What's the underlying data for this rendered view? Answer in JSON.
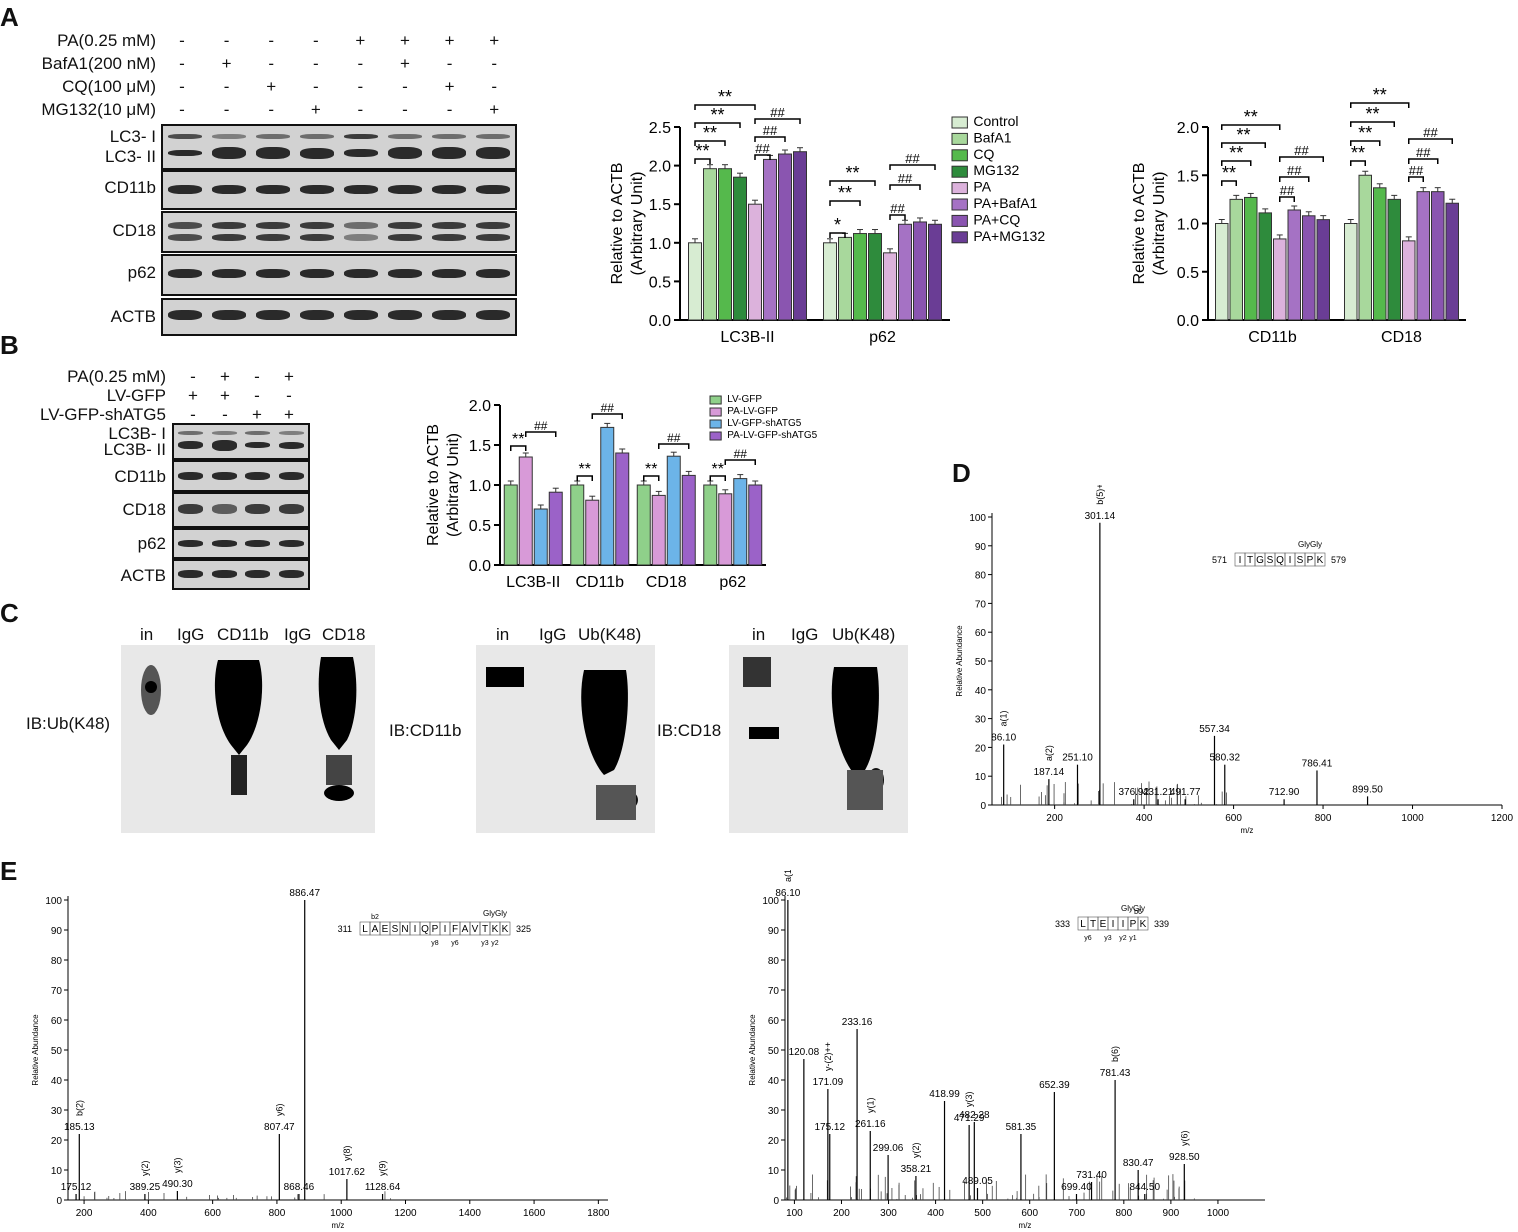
{
  "panels": {
    "A": "A",
    "B": "B",
    "C": "C",
    "D": "D",
    "E": "E"
  },
  "panelA": {
    "conditions": [
      {
        "label": "PA(0.25 mM)",
        "signs": [
          "-",
          "-",
          "-",
          "-",
          "+",
          "+",
          "+",
          "+"
        ]
      },
      {
        "label": "BafA1(200 nM)",
        "signs": [
          "-",
          "+",
          "-",
          "-",
          "-",
          "+",
          "-",
          "-"
        ]
      },
      {
        "label": "CQ(100 μM)",
        "signs": [
          "-",
          "-",
          "+",
          "-",
          "-",
          "-",
          "+",
          "-"
        ]
      },
      {
        "label": "MG132(10 μM)",
        "signs": [
          "-",
          "-",
          "-",
          "+",
          "-",
          "-",
          "-",
          "+"
        ]
      }
    ],
    "blots": [
      "LC3- I",
      "LC3- II",
      "CD11b",
      "CD18",
      "p62",
      "ACTB"
    ]
  },
  "panelB": {
    "conditions": [
      {
        "label": "PA(0.25 mM)",
        "signs": [
          "-",
          "+",
          "-",
          "+"
        ]
      },
      {
        "label": "LV-GFP",
        "signs": [
          "+",
          "+",
          "-",
          "-"
        ]
      },
      {
        "label": "LV-GFP-shATG5",
        "signs": [
          "-",
          "-",
          "+",
          "+"
        ]
      }
    ],
    "blots": [
      "LC3B- I",
      "LC3B- II",
      "CD11b",
      "CD18",
      "p62",
      "ACTB"
    ]
  },
  "panelC": {
    "blot1": {
      "lanes": [
        "in",
        "IgG",
        "CD11b",
        "IgG",
        "CD18"
      ],
      "ib": "IB:Ub(K48)"
    },
    "blot2": {
      "lanes": [
        "in",
        "IgG",
        "Ub(K48)"
      ],
      "ib": "IB:CD11b"
    },
    "blot3": {
      "lanes": [
        "in",
        "IgG",
        "Ub(K48)"
      ],
      "ib": "IB:CD18"
    }
  },
  "colors": {
    "Control": "#d7ecd2",
    "BafA1": "#a8d89c",
    "CQ": "#55b94c",
    "MG132": "#2e8b3c",
    "PA": "#dcb2dc",
    "PA+BafA1": "#a572c4",
    "PA+CQ": "#8a55b0",
    "PA+MG132": "#6a3d95",
    "LV-GFP": "#8fd08a",
    "PA-LV-GFP": "#d89ad8",
    "LV-GFP-shATG5": "#6cb4e8",
    "PA-LV-GFP-shATG5": "#9b62c8"
  },
  "chart_data": [
    {
      "type": "bar",
      "ylabel": "Relative to ACTB",
      "ylabel2": "(Arbitrary Unit)",
      "ylim": [
        0,
        2.5
      ],
      "yticks": [
        "0.0",
        "0.5",
        "1.0",
        "1.5",
        "2.0",
        "2.5"
      ],
      "categories": [
        "LC3B-II",
        "p62"
      ],
      "series": [
        {
          "name": "Control",
          "values": [
            1.0,
            1.0
          ]
        },
        {
          "name": "BafA1",
          "values": [
            1.96,
            1.07
          ]
        },
        {
          "name": "CQ",
          "values": [
            1.96,
            1.12
          ]
        },
        {
          "name": "MG132",
          "values": [
            1.85,
            1.12
          ]
        },
        {
          "name": "PA",
          "values": [
            1.5,
            0.87
          ]
        },
        {
          "name": "PA+BafA1",
          "values": [
            2.08,
            1.24
          ]
        },
        {
          "name": "PA+CQ",
          "values": [
            2.15,
            1.27
          ]
        },
        {
          "name": "PA+MG132",
          "values": [
            2.18,
            1.24
          ]
        }
      ],
      "legend": "right",
      "annotations": [
        "**",
        "**",
        "**",
        "##",
        "##",
        "**",
        "**",
        "*",
        "**",
        "##",
        "##",
        "##"
      ]
    },
    {
      "type": "bar",
      "ylabel": "Relative to ACTB",
      "ylabel2": "(Arbitrary Unit)",
      "ylim": [
        0,
        2.0
      ],
      "yticks": [
        "0.0",
        "0.5",
        "1.0",
        "1.5",
        "2.0"
      ],
      "categories": [
        "CD11b",
        "CD18"
      ],
      "series": [
        {
          "name": "Control",
          "values": [
            1.0,
            1.0
          ]
        },
        {
          "name": "BafA1",
          "values": [
            1.25,
            1.5
          ]
        },
        {
          "name": "CQ",
          "values": [
            1.27,
            1.37
          ]
        },
        {
          "name": "MG132",
          "values": [
            1.11,
            1.25
          ]
        },
        {
          "name": "PA",
          "values": [
            0.84,
            0.82
          ]
        },
        {
          "name": "PA+BafA1",
          "values": [
            1.14,
            1.33
          ]
        },
        {
          "name": "PA+CQ",
          "values": [
            1.08,
            1.33
          ]
        },
        {
          "name": "PA+MG132",
          "values": [
            1.04,
            1.21
          ]
        }
      ],
      "annotations": [
        "**",
        "**",
        "**",
        "**",
        "##",
        "##",
        "##",
        "**",
        "**",
        "**",
        "**",
        "##",
        "##",
        "##"
      ]
    },
    {
      "type": "bar",
      "ylabel": "Relative to ACTB",
      "ylabel2": "(Arbitrary Unit)",
      "ylim": [
        0,
        2.0
      ],
      "yticks": [
        "0.0",
        "0.5",
        "1.0",
        "1.5",
        "2.0"
      ],
      "categories": [
        "LC3B-II",
        "CD11b",
        "CD18",
        "p62"
      ],
      "series": [
        {
          "name": "LV-GFP",
          "values": [
            1.0,
            1.0,
            1.0,
            1.0
          ]
        },
        {
          "name": "PA-LV-GFP",
          "values": [
            1.35,
            0.81,
            0.87,
            0.89
          ]
        },
        {
          "name": "LV-GFP-shATG5",
          "values": [
            0.7,
            1.72,
            1.36,
            1.08
          ]
        },
        {
          "name": "PA-LV-GFP-shATG5",
          "values": [
            0.91,
            1.4,
            1.12,
            1.0
          ]
        }
      ],
      "legend": "top-right",
      "annotations": [
        "**",
        "##",
        "**",
        "##",
        "**",
        "##",
        "**",
        "##"
      ]
    },
    {
      "type": "bar",
      "subtype": "mass-spectrum",
      "ylabel": "Relative Abundance",
      "xlabel": "m/z",
      "xlim": [
        60,
        1200
      ],
      "ylim": [
        0,
        100
      ],
      "xticks": [
        "200",
        "400",
        "600",
        "800",
        "1000",
        "1200"
      ],
      "yticks": [
        "0",
        "10",
        "20",
        "30",
        "40",
        "50",
        "60",
        "70",
        "80",
        "90",
        "100"
      ],
      "peptide": {
        "start": "571",
        "seq": "ITGSQISPK",
        "end": "579",
        "mod": "GlyGly"
      },
      "peaks": [
        {
          "x": 86.1,
          "y": 21,
          "label": "86.10",
          "ion": "a(1)"
        },
        {
          "x": 187.14,
          "y": 9,
          "label": "187.14",
          "ion": "a(2)"
        },
        {
          "x": 251.1,
          "y": 14,
          "label": "251.10"
        },
        {
          "x": 301.14,
          "y": 98,
          "label": "301.14",
          "ion": "b(5)++"
        },
        {
          "x": 376.92,
          "y": 2,
          "label": "376.92"
        },
        {
          "x": 431.21,
          "y": 2,
          "label": "431.21"
        },
        {
          "x": 491.77,
          "y": 2,
          "label": "491.77"
        },
        {
          "x": 557.34,
          "y": 24,
          "label": "557.34"
        },
        {
          "x": 580.32,
          "y": 14,
          "label": "580.32"
        },
        {
          "x": 712.9,
          "y": 2,
          "label": "712.90"
        },
        {
          "x": 786.41,
          "y": 12,
          "label": "786.41"
        },
        {
          "x": 899.5,
          "y": 3,
          "label": "899.50"
        }
      ]
    },
    {
      "type": "bar",
      "subtype": "mass-spectrum",
      "ylabel": "Relative Abundance",
      "xlabel": "m/z",
      "xlim": [
        150,
        1830
      ],
      "ylim": [
        0,
        100
      ],
      "xticks": [
        "200",
        "400",
        "600",
        "800",
        "1000",
        "1200",
        "1400",
        "1600",
        "1800"
      ],
      "yticks": [
        "0",
        "10",
        "20",
        "30",
        "40",
        "50",
        "60",
        "70",
        "80",
        "90",
        "100"
      ],
      "peptide": {
        "start": "311",
        "seq": "LAESNIQPIFAVTKK",
        "end": "325",
        "mod": "GlyGly",
        "b": "b2",
        "y": [
          "y8",
          "y6",
          "y3",
          "y2"
        ]
      },
      "peaks": [
        {
          "x": 175.12,
          "y": 2,
          "label": "175.12"
        },
        {
          "x": 185.13,
          "y": 22,
          "label": "185.13",
          "ion": "b(2)"
        },
        {
          "x": 389.25,
          "y": 2,
          "label": "389.25",
          "ion": "y(2)"
        },
        {
          "x": 490.3,
          "y": 3,
          "label": "490.30",
          "ion": "y(3)"
        },
        {
          "x": 807.47,
          "y": 22,
          "label": "807.47",
          "ion": "y6)"
        },
        {
          "x": 868.46,
          "y": 2,
          "label": "868.46"
        },
        {
          "x": 886.47,
          "y": 100,
          "label": "886.47"
        },
        {
          "x": 1017.62,
          "y": 7,
          "label": "1017.62",
          "ion": "y(8)"
        },
        {
          "x": 1128.64,
          "y": 2,
          "label": "1128.64",
          "ion": "y(9)"
        }
      ]
    },
    {
      "type": "bar",
      "subtype": "mass-spectrum",
      "ylabel": "Relative Abundance",
      "xlabel": "m/z",
      "xlim": [
        80,
        1100
      ],
      "ylim": [
        0,
        100
      ],
      "xticks": [
        "100",
        "200",
        "300",
        "400",
        "500",
        "600",
        "700",
        "800",
        "900",
        "1000"
      ],
      "yticks": [
        "0",
        "10",
        "20",
        "30",
        "40",
        "50",
        "60",
        "70",
        "80",
        "90",
        "100"
      ],
      "peptide": {
        "start": "333",
        "seq": "LTEIIPK",
        "end": "339",
        "mod": "GlyGly",
        "b": "b6",
        "y": [
          "y6",
          "y3",
          "y2",
          "y1"
        ]
      },
      "peaks": [
        {
          "x": 86.1,
          "y": 100,
          "label": "86.10",
          "ion": "a(1)"
        },
        {
          "x": 120.08,
          "y": 47,
          "label": "120.08"
        },
        {
          "x": 171.09,
          "y": 37,
          "label": "171.09",
          "ion": "y-(2)++"
        },
        {
          "x": 175.12,
          "y": 22,
          "label": "175.12"
        },
        {
          "x": 233.16,
          "y": 57,
          "label": "233.16"
        },
        {
          "x": 261.16,
          "y": 23,
          "label": "261.16",
          "ion": "y(1)"
        },
        {
          "x": 299.06,
          "y": 15,
          "label": "299.06"
        },
        {
          "x": 358.21,
          "y": 8,
          "label": "358.21",
          "ion": "y(2)"
        },
        {
          "x": 418.99,
          "y": 33,
          "label": "418.99"
        },
        {
          "x": 471.29,
          "y": 25,
          "label": "471.29",
          "ion": "y(3)"
        },
        {
          "x": 482.28,
          "y": 26,
          "label": "482.28"
        },
        {
          "x": 489.05,
          "y": 4,
          "label": "489.05"
        },
        {
          "x": 581.35,
          "y": 22,
          "label": "581.35"
        },
        {
          "x": 652.39,
          "y": 36,
          "label": "652.39"
        },
        {
          "x": 699.4,
          "y": 2,
          "label": "699.40"
        },
        {
          "x": 731.4,
          "y": 6,
          "label": "731.40"
        },
        {
          "x": 781.43,
          "y": 40,
          "label": "781.43",
          "ion": "b(6)"
        },
        {
          "x": 830.47,
          "y": 10,
          "label": "830.47"
        },
        {
          "x": 844.5,
          "y": 2,
          "label": "844.50"
        },
        {
          "x": 928.5,
          "y": 12,
          "label": "928.50",
          "ion": "y(6)"
        }
      ]
    }
  ]
}
